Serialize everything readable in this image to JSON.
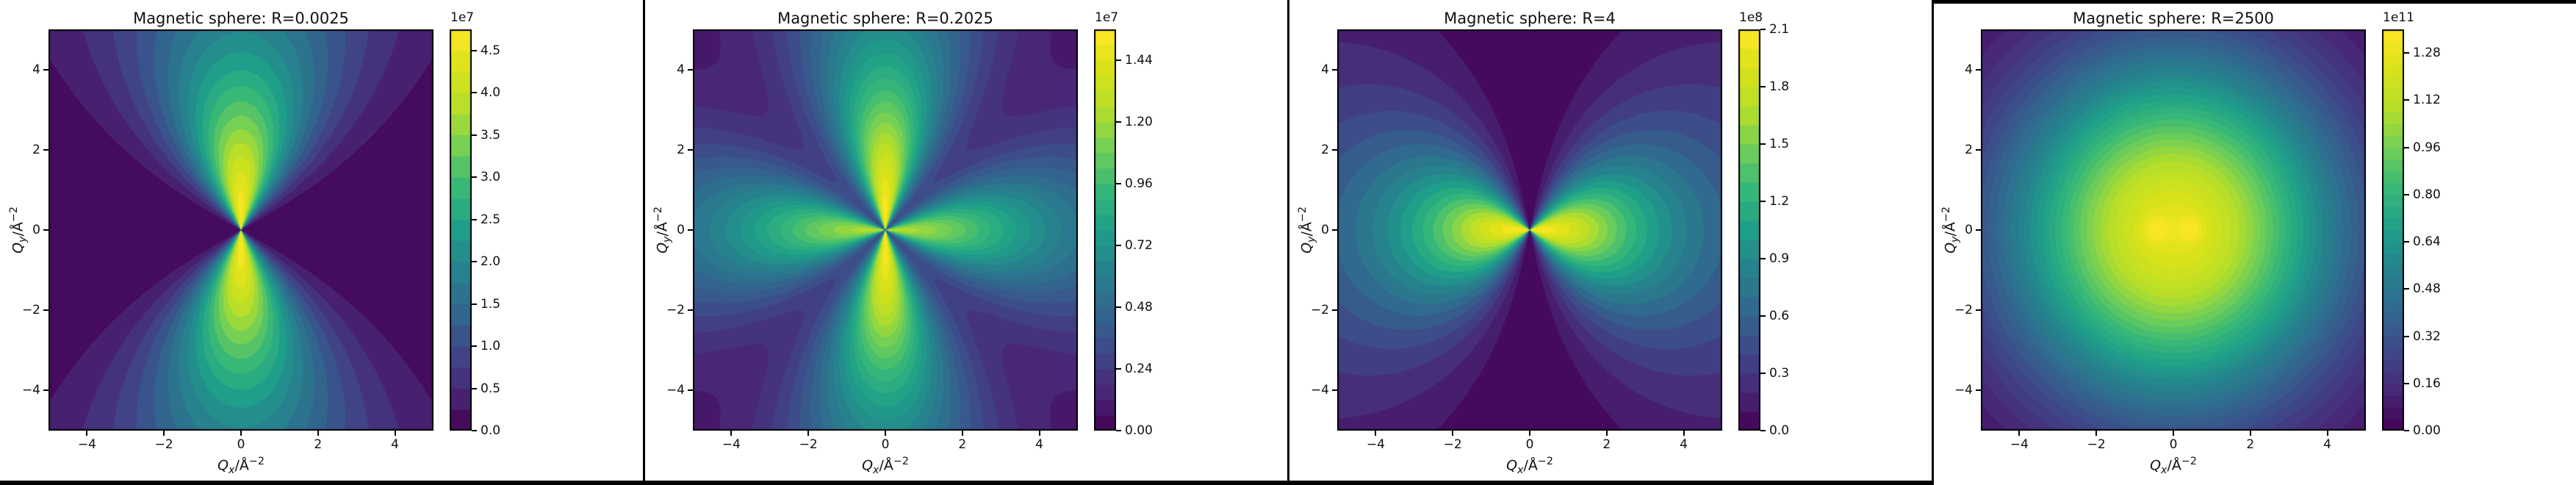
{
  "figure": {
    "background": "#ffffff",
    "frame_color": "#000000"
  },
  "colormap": {
    "name": "viridis",
    "stops": [
      "#440154",
      "#482878",
      "#3e4989",
      "#31688e",
      "#26828e",
      "#1f9e89",
      "#35b779",
      "#6ece58",
      "#b5de2b",
      "#d8e219",
      "#fde725"
    ]
  },
  "axis_labels": {
    "q": "Q",
    "x_sub": "x",
    "y_sub": "y",
    "unit_slash": "/Å",
    "unit_exp": "−2"
  },
  "chart_data": [
    {
      "type": "contour",
      "title": "Magnetic sphere: R=0.0025",
      "R": 0.0025,
      "xlabel": "Q_x/Å^−2",
      "ylabel": "Q_y/Å^−2",
      "x_range": [
        -5,
        5
      ],
      "y_range": [
        -5,
        5
      ],
      "x_ticks": {
        "values": [
          -4,
          -2,
          0,
          2,
          4
        ],
        "labels": [
          "−4",
          "−2",
          "0",
          "2",
          "4"
        ]
      },
      "y_ticks": {
        "values": [
          -4,
          -2,
          0,
          2,
          4
        ],
        "labels": [
          "−4",
          "−2",
          "0",
          "2",
          "4"
        ]
      },
      "colorbar": {
        "scale": "1e7",
        "vmax": 4.75,
        "ticks": [
          0.0,
          0.5,
          1.0,
          1.5,
          2.0,
          2.5,
          3.0,
          3.5,
          4.0,
          4.5
        ],
        "tick_labels": [
          "0.0",
          "0.5",
          "1.0",
          "1.5",
          "2.0",
          "2.5",
          "3.0",
          "3.5",
          "4.0",
          "4.5"
        ]
      },
      "levels": 19,
      "pattern": {
        "kind": "dipole",
        "axis": "y",
        "power": 2,
        "radial": "lorentz",
        "s": 4.2
      }
    },
    {
      "type": "contour",
      "title": "Magnetic sphere: R=0.2025",
      "R": 0.2025,
      "xlabel": "Q_x/Å^−2",
      "ylabel": "Q_y/Å^−2",
      "x_range": [
        -5,
        5
      ],
      "y_range": [
        -5,
        5
      ],
      "x_ticks": {
        "values": [
          -4,
          -2,
          0,
          2,
          4
        ],
        "labels": [
          "−4",
          "−2",
          "0",
          "2",
          "4"
        ]
      },
      "y_ticks": {
        "values": [
          -4,
          -2,
          0,
          2,
          4
        ],
        "labels": [
          "−4",
          "−2",
          "0",
          "2",
          "4"
        ]
      },
      "colorbar": {
        "scale": "1e7",
        "vmax": 1.56,
        "ticks": [
          0.0,
          0.24,
          0.48,
          0.72,
          0.96,
          1.2,
          1.44
        ],
        "tick_labels": [
          "0.00",
          "0.24",
          "0.48",
          "0.72",
          "0.96",
          "1.20",
          "1.44"
        ]
      },
      "levels": 26,
      "pattern": {
        "kind": "clover",
        "power": 3,
        "b": 0.8,
        "radial": "lorentz",
        "s": 4.4
      }
    },
    {
      "type": "contour",
      "title": "Magnetic sphere: R=4",
      "R": 4,
      "xlabel": "Q_x/Å^−2",
      "ylabel": "Q_y/Å^−2",
      "x_range": [
        -5,
        5
      ],
      "y_range": [
        -5,
        5
      ],
      "x_ticks": {
        "values": [
          -4,
          -2,
          0,
          2,
          4
        ],
        "labels": [
          "−4",
          "−2",
          "0",
          "2",
          "4"
        ]
      },
      "y_ticks": {
        "values": [
          -4,
          -2,
          0,
          2,
          4
        ],
        "labels": [
          "−4",
          "−2",
          "0",
          "2",
          "4"
        ]
      },
      "colorbar": {
        "scale": "1e8",
        "vmax": 2.1,
        "ticks": [
          0.0,
          0.3,
          0.6,
          0.9,
          1.2,
          1.5,
          1.8,
          2.1
        ],
        "tick_labels": [
          "0.0",
          "0.3",
          "0.6",
          "0.9",
          "1.2",
          "1.5",
          "1.8",
          "2.1"
        ]
      },
      "levels": 21,
      "pattern": {
        "kind": "dipole",
        "axis": "x",
        "power": 1,
        "radial": "lorentz",
        "s": 3.2
      }
    },
    {
      "type": "contour",
      "title": "Magnetic sphere: R=2500",
      "R": 2500,
      "xlabel": "Q_x/Å^−2",
      "ylabel": "Q_y/Å^−2",
      "x_range": [
        -5,
        5
      ],
      "y_range": [
        -5,
        5
      ],
      "x_ticks": {
        "values": [
          -4,
          -2,
          0,
          2,
          4
        ],
        "labels": [
          "−4",
          "−2",
          "0",
          "2",
          "4"
        ]
      },
      "y_ticks": {
        "values": [
          -4,
          -2,
          0,
          2,
          4
        ],
        "labels": [
          "−4",
          "−2",
          "0",
          "2",
          "4"
        ]
      },
      "colorbar": {
        "scale": "1e11",
        "vmax": 1.36,
        "ticks": [
          0.0,
          0.16,
          0.32,
          0.48,
          0.64,
          0.8,
          0.96,
          1.12,
          1.28
        ],
        "tick_labels": [
          "0.00",
          "0.16",
          "0.32",
          "0.48",
          "0.64",
          "0.80",
          "0.96",
          "1.12",
          "1.28"
        ]
      },
      "levels": 34,
      "pattern": {
        "kind": "radial",
        "base": 0.93,
        "radial": "gauss",
        "s": 4.3,
        "dots": {
          "amp": 0.09,
          "x": 0.45,
          "sigma2": 0.055
        }
      }
    }
  ]
}
